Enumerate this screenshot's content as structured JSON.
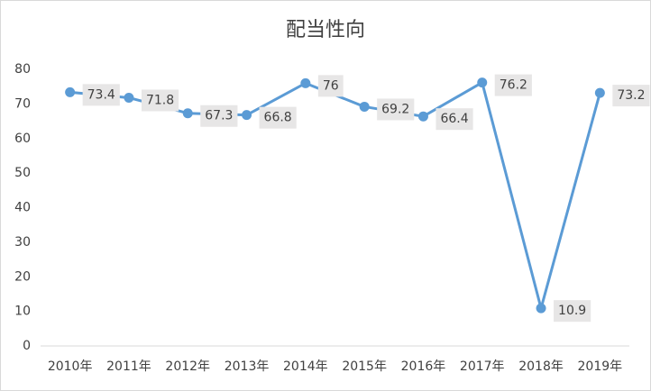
{
  "chart_data": {
    "type": "line",
    "title": "配当性向",
    "categories": [
      "2010年",
      "2011年",
      "2012年",
      "2013年",
      "2014年",
      "2015年",
      "2016年",
      "2017年",
      "2018年",
      "2019年"
    ],
    "values": [
      73.4,
      71.8,
      67.3,
      66.8,
      76,
      69.2,
      66.4,
      76.2,
      10.9,
      73.2
    ],
    "color": "#5b9bd5",
    "ylim": [
      0,
      80
    ],
    "yticks": [
      0,
      10,
      20,
      30,
      40,
      50,
      60,
      70,
      80
    ],
    "grid": false
  }
}
